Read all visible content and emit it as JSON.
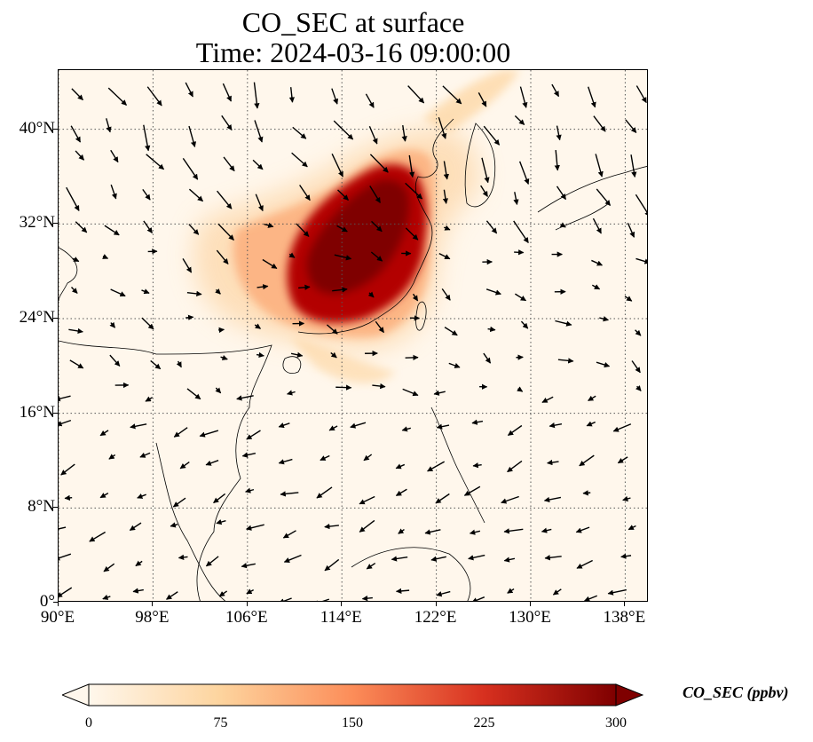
{
  "title": {
    "line1": "CO_SEC at surface",
    "line2": "Time: 2024-03-16 09:00:00"
  },
  "map": {
    "lon_range": [
      90,
      140
    ],
    "lat_range": [
      0,
      45
    ],
    "lon_ticks": [
      "90°E",
      "98°E",
      "106°E",
      "114°E",
      "122°E",
      "130°E",
      "138°E"
    ],
    "lat_ticks": [
      "0°",
      "8°N",
      "16°N",
      "24°N",
      "32°N",
      "40°N"
    ],
    "gridlines": "dotted",
    "coastlines": true,
    "wind_vectors": true,
    "background_color": "#fff7ec"
  },
  "colorbar": {
    "label": "CO_SEC (ppbv)",
    "ticks": [
      "0",
      "75",
      "150",
      "225",
      "300"
    ],
    "range": [
      0,
      300
    ],
    "extend": "both",
    "colormap": [
      "#fff7ec",
      "#fdd49e",
      "#fc8d59",
      "#d7301f",
      "#7f0000"
    ]
  }
}
